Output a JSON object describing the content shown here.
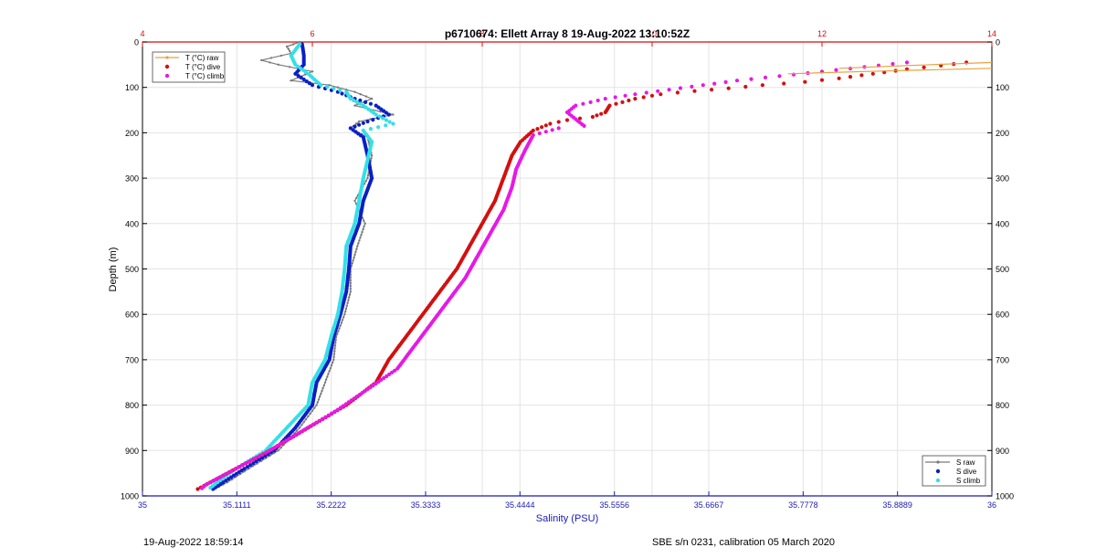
{
  "chart_data": {
    "type": "scatter",
    "title": "p6710674: Ellett Array 8 19-Aug-2022 13:10:52Z",
    "ylabel": "Depth (m)",
    "xlabel_bottom": "Salinity (PSU)",
    "xlabel_top": "",
    "ylim": [
      1000,
      0
    ],
    "xlim_bottom": [
      35,
      36
    ],
    "xlim_top": [
      4,
      14
    ],
    "y_ticks": [
      "0",
      "100",
      "200",
      "300",
      "400",
      "500",
      "600",
      "700",
      "800",
      "900",
      "1000"
    ],
    "x_bottom_ticks": [
      "35",
      "35.1111",
      "35.2222",
      "35.3333",
      "35.4444",
      "35.5556",
      "35.6667",
      "35.7778",
      "35.8889",
      "36"
    ],
    "x_top_ticks": [
      "4",
      "6",
      "8",
      "10",
      "12",
      "14"
    ],
    "grid": true,
    "legend_temperature": {
      "placement": "top-left",
      "entries": [
        "T (°C) raw",
        "T (°C) dive",
        "T (°C) climb"
      ]
    },
    "legend_salinity": {
      "placement": "bottom-right",
      "entries": [
        "S raw",
        "S dive",
        "S climb"
      ]
    },
    "colors": {
      "T_raw": "#e8a23c",
      "T_dive": "#d40f0f",
      "T_climb": "#e619e6",
      "S_raw": "#7a7a7a",
      "S_dive": "#0a1fc4",
      "S_climb": "#33e0e6",
      "top_axis": "#d40f0f",
      "bottom_axis": "#1a1ab8"
    },
    "series": [
      {
        "name": "T (°C) dive",
        "axis": "top",
        "points": [
          [
            13.7,
            45
          ],
          [
            13.4,
            52
          ],
          [
            13.0,
            60
          ],
          [
            12.6,
            70
          ],
          [
            12.2,
            80
          ],
          [
            11.8,
            88
          ],
          [
            11.3,
            95
          ],
          [
            10.9,
            102
          ],
          [
            10.5,
            108
          ],
          [
            10.1,
            115
          ],
          [
            9.8,
            125
          ],
          [
            9.5,
            140
          ],
          [
            9.45,
            155
          ],
          [
            9.3,
            165
          ],
          [
            9.0,
            172
          ],
          [
            8.8,
            180
          ],
          [
            8.6,
            195
          ],
          [
            8.45,
            220
          ],
          [
            8.35,
            250
          ],
          [
            8.25,
            300
          ],
          [
            8.15,
            350
          ],
          [
            8.0,
            400
          ],
          [
            7.85,
            450
          ],
          [
            7.7,
            500
          ],
          [
            7.5,
            550
          ],
          [
            7.3,
            600
          ],
          [
            7.1,
            650
          ],
          [
            6.9,
            700
          ],
          [
            6.75,
            750
          ],
          [
            6.4,
            800
          ],
          [
            5.95,
            850
          ],
          [
            5.5,
            900
          ],
          [
            5.1,
            940
          ],
          [
            4.8,
            970
          ],
          [
            4.65,
            985
          ]
        ]
      },
      {
        "name": "T (°C) climb",
        "axis": "top",
        "points": [
          [
            13.0,
            45
          ],
          [
            12.5,
            55
          ],
          [
            12.0,
            65
          ],
          [
            11.5,
            75
          ],
          [
            11.0,
            85
          ],
          [
            10.6,
            95
          ],
          [
            10.2,
            105
          ],
          [
            9.8,
            115
          ],
          [
            9.45,
            125
          ],
          [
            9.1,
            140
          ],
          [
            9.0,
            155
          ],
          [
            9.1,
            170
          ],
          [
            9.2,
            185
          ],
          [
            8.9,
            190
          ],
          [
            8.6,
            205
          ],
          [
            8.5,
            240
          ],
          [
            8.4,
            280
          ],
          [
            8.35,
            320
          ],
          [
            8.25,
            370
          ],
          [
            8.1,
            420
          ],
          [
            7.95,
            470
          ],
          [
            7.8,
            520
          ],
          [
            7.6,
            570
          ],
          [
            7.4,
            620
          ],
          [
            7.2,
            670
          ],
          [
            7.0,
            720
          ],
          [
            6.65,
            765
          ],
          [
            6.3,
            810
          ],
          [
            5.9,
            855
          ],
          [
            5.45,
            905
          ],
          [
            5.05,
            945
          ],
          [
            4.75,
            975
          ],
          [
            4.7,
            983
          ]
        ]
      },
      {
        "name": "S raw",
        "axis": "bottom",
        "points": [
          [
            35.185,
            0
          ],
          [
            35.17,
            10
          ],
          [
            35.175,
            25
          ],
          [
            35.14,
            40
          ],
          [
            35.16,
            50
          ],
          [
            35.2,
            65
          ],
          [
            35.175,
            85
          ],
          [
            35.22,
            95
          ],
          [
            35.25,
            110
          ],
          [
            35.27,
            125
          ],
          [
            35.25,
            140
          ],
          [
            35.295,
            160
          ],
          [
            35.255,
            175
          ],
          [
            35.245,
            190
          ],
          [
            35.265,
            210
          ],
          [
            35.27,
            250
          ],
          [
            35.265,
            300
          ],
          [
            35.25,
            350
          ],
          [
            35.262,
            400
          ],
          [
            35.253,
            450
          ],
          [
            35.245,
            500
          ],
          [
            35.245,
            550
          ],
          [
            35.238,
            600
          ],
          [
            35.228,
            650
          ],
          [
            35.225,
            700
          ],
          [
            35.215,
            750
          ],
          [
            35.205,
            800
          ],
          [
            35.185,
            850
          ],
          [
            35.16,
            900
          ],
          [
            35.125,
            940
          ],
          [
            35.1,
            970
          ],
          [
            35.085,
            985
          ]
        ]
      },
      {
        "name": "S dive",
        "axis": "bottom",
        "points": [
          [
            35.188,
            5
          ],
          [
            35.19,
            30
          ],
          [
            35.19,
            50
          ],
          [
            35.18,
            70
          ],
          [
            35.2,
            95
          ],
          [
            35.23,
            110
          ],
          [
            35.25,
            125
          ],
          [
            35.275,
            140
          ],
          [
            35.29,
            160
          ],
          [
            35.265,
            175
          ],
          [
            35.245,
            190
          ],
          [
            35.26,
            210
          ],
          [
            35.265,
            250
          ],
          [
            35.27,
            300
          ],
          [
            35.26,
            350
          ],
          [
            35.255,
            400
          ],
          [
            35.245,
            450
          ],
          [
            35.243,
            500
          ],
          [
            35.24,
            550
          ],
          [
            35.233,
            600
          ],
          [
            35.225,
            650
          ],
          [
            35.22,
            700
          ],
          [
            35.205,
            750
          ],
          [
            35.2,
            800
          ],
          [
            35.18,
            850
          ],
          [
            35.155,
            900
          ],
          [
            35.12,
            940
          ],
          [
            35.095,
            970
          ],
          [
            35.083,
            985
          ]
        ]
      },
      {
        "name": "S climb",
        "axis": "bottom",
        "points": [
          [
            35.185,
            5
          ],
          [
            35.175,
            30
          ],
          [
            35.18,
            50
          ],
          [
            35.195,
            70
          ],
          [
            35.21,
            95
          ],
          [
            35.24,
            110
          ],
          [
            35.245,
            125
          ],
          [
            35.26,
            140
          ],
          [
            35.275,
            160
          ],
          [
            35.295,
            180
          ],
          [
            35.26,
            195
          ],
          [
            35.27,
            220
          ],
          [
            35.265,
            260
          ],
          [
            35.26,
            300
          ],
          [
            35.255,
            350
          ],
          [
            35.25,
            400
          ],
          [
            35.24,
            450
          ],
          [
            35.238,
            500
          ],
          [
            35.235,
            550
          ],
          [
            35.23,
            600
          ],
          [
            35.222,
            650
          ],
          [
            35.215,
            700
          ],
          [
            35.2,
            750
          ],
          [
            35.195,
            800
          ],
          [
            35.17,
            850
          ],
          [
            35.145,
            900
          ],
          [
            35.11,
            940
          ],
          [
            35.088,
            970
          ],
          [
            35.08,
            982
          ]
        ]
      }
    ]
  },
  "footer": {
    "left": "19-Aug-2022 18:59:14",
    "right": "SBE s/n 0231, calibration 05 March 2020"
  }
}
